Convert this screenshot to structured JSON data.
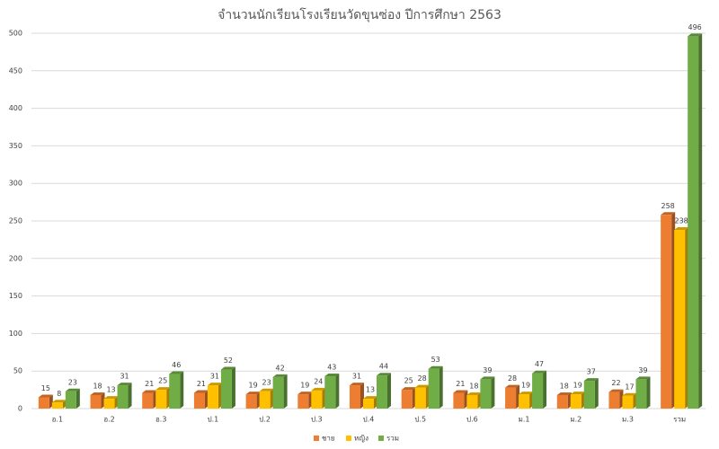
{
  "chart_data": {
    "type": "bar",
    "title": "จำนวนนักเรียนโรงเรียนวัดขุนซ่อง ปีการศึกษา 2563",
    "categories": [
      "อ.1",
      "อ.2",
      "อ.3",
      "ป.1",
      "ป.2",
      "ป.3",
      "ป.4",
      "ป.5",
      "ป.6",
      "ม.1",
      "ม.2",
      "ม.3",
      "รวม"
    ],
    "series": [
      {
        "name": "ชาย",
        "color": "#ED7D31",
        "values": [
          15,
          18,
          21,
          21,
          19,
          19,
          31,
          25,
          21,
          28,
          18,
          22,
          258
        ]
      },
      {
        "name": "หญิง",
        "color": "#FFC000",
        "values": [
          8,
          13,
          25,
          31,
          23,
          24,
          13,
          28,
          18,
          19,
          19,
          17,
          238
        ]
      },
      {
        "name": "รวม",
        "color": "#70AD47",
        "values": [
          23,
          31,
          46,
          52,
          42,
          43,
          44,
          53,
          39,
          47,
          37,
          39,
          496
        ]
      }
    ],
    "ylim": [
      0,
      500
    ],
    "yticks": [
      0,
      50,
      100,
      150,
      200,
      250,
      300,
      350,
      400,
      450,
      500
    ],
    "grid": true,
    "legend": "bottom"
  }
}
